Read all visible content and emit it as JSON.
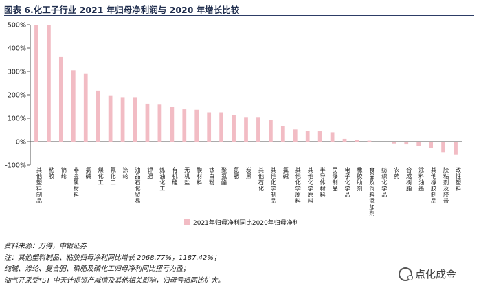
{
  "title": "图表 6.化工子行业 2021 年归母净利润与 2020 年增长比较",
  "chart_data": {
    "type": "bar",
    "categories": [
      "其他塑料制品",
      "粘胶",
      "锦纶",
      "非金属材料",
      "氯碱",
      "煤化工",
      "氟化工",
      "涤纶",
      "油品石化贸易",
      "钾肥",
      "炼油化工",
      "有机硅",
      "无机盐",
      "膜材料",
      "钛白粉",
      "聚氨酯",
      "氮肥",
      "炭黑",
      "其他石化",
      "其他化学制品",
      "氯碱",
      "其他化学原料",
      "其他化学原料",
      "半导体材料",
      "民爆制品",
      "电子化学品",
      "橡胶助剂",
      "食品及饲料添加剂",
      "纺织化学品",
      "农药",
      "合成树脂",
      "涂料油墨",
      "其他橡胶制品",
      "胶粘剂及胶带",
      "改性塑料"
    ],
    "series": [
      {
        "name": "2021年归母净利同比2020年归母净利",
        "values": [
          500,
          500,
          362,
          305,
          292,
          218,
          198,
          190,
          190,
          162,
          158,
          148,
          138,
          136,
          125,
          125,
          112,
          105,
          105,
          92,
          65,
          52,
          47,
          44,
          40,
          12,
          8,
          4,
          -2,
          -8,
          -12,
          -18,
          -28,
          -45,
          -55
        ]
      }
    ],
    "ylim": [
      -100,
      500
    ],
    "yticks": [
      "-100%",
      "0%",
      "100%",
      "200%",
      "300%",
      "400%",
      "500%"
    ],
    "ytick_values": [
      -100,
      0,
      100,
      200,
      300,
      400,
      500
    ],
    "legend_position": "bottom",
    "bar_color": "#f2bcc4",
    "grid": false
  },
  "notes": {
    "source": "资料来源：万得，中银证券",
    "line1": "注：其他塑料制品、粘胶归母净利同比增长 2068.77%，1187.42%；",
    "line2": "纯碱、涤纶、复合肥、磷肥及磷化工归母净利同比扭亏为盈；",
    "line3": "油气开采受*ST 中天计提资产减值及其他相关影响，归母亏损同比扩大。"
  },
  "logo": {
    "text": "点化成金"
  }
}
